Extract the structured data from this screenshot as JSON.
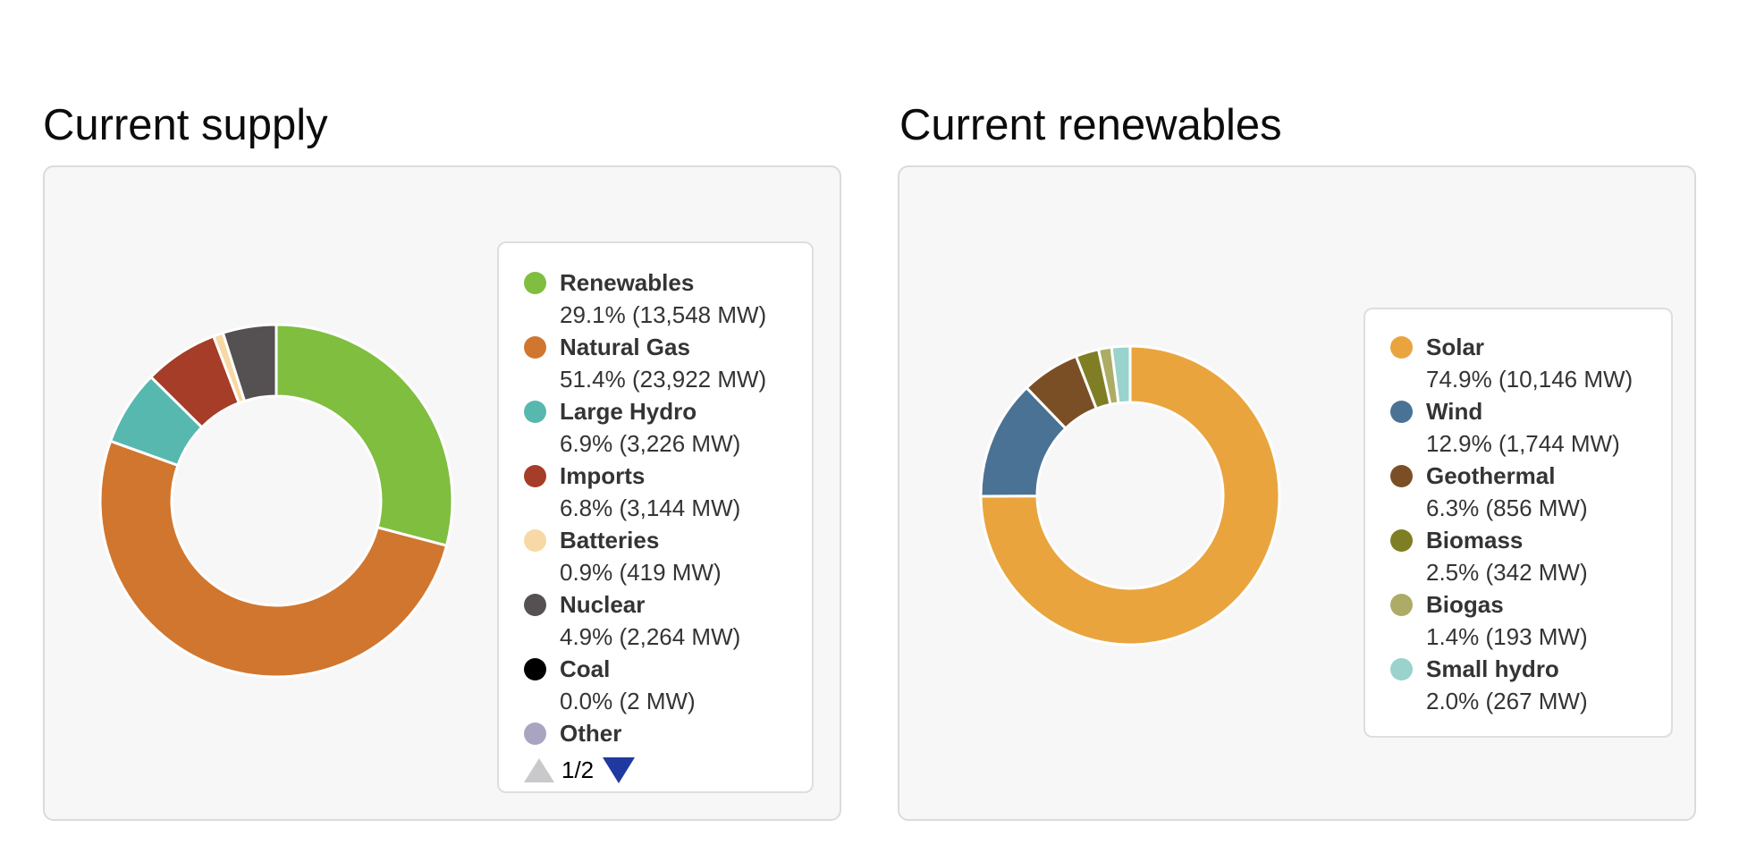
{
  "theme": {
    "page_bg": "#ffffff",
    "card_bg": "#f7f7f7",
    "card_border": "#dbdbdb",
    "legend_bg": "#ffffff",
    "legend_border": "#dedede",
    "text_color": "#343434",
    "title_color": "#0c0c0c"
  },
  "chart_data": [
    {
      "type": "pie",
      "donut": true,
      "title": "Current supply",
      "legend_position": "right",
      "start_angle_deg": 0,
      "direction": "clockwise",
      "units": "MW",
      "segments": [
        {
          "label": "Renewables",
          "percent": 29.1,
          "mw": 13548,
          "value_text": "29.1% (13,548 MW)",
          "color": "#7fbe3f"
        },
        {
          "label": "Natural Gas",
          "percent": 51.4,
          "mw": 23922,
          "value_text": "51.4% (23,922 MW)",
          "color": "#d1762f"
        },
        {
          "label": "Large Hydro",
          "percent": 6.9,
          "mw": 3226,
          "value_text": "6.9% (3,226 MW)",
          "color": "#56b8af"
        },
        {
          "label": "Imports",
          "percent": 6.8,
          "mw": 3144,
          "value_text": "6.8% (3,144 MW)",
          "color": "#a53d28"
        },
        {
          "label": "Batteries",
          "percent": 0.9,
          "mw": 419,
          "value_text": "0.9% (419 MW)",
          "color": "#f6d9a4"
        },
        {
          "label": "Nuclear",
          "percent": 4.9,
          "mw": 2264,
          "value_text": "4.9% (2,264 MW)",
          "color": "#555153"
        },
        {
          "label": "Coal",
          "percent": 0.0,
          "mw": 2,
          "value_text": "0.0% (2 MW)",
          "color": "#000000"
        },
        {
          "label": "Other",
          "percent": 0.0,
          "value_text": "",
          "color": "#a9a4bf",
          "clipped": true
        }
      ],
      "pagination": {
        "label": "1/2",
        "up_icon": "triangle-up",
        "down_icon": "triangle-down",
        "up_color": "#c9c9cb",
        "down_color": "#2039a0"
      }
    },
    {
      "type": "pie",
      "donut": true,
      "title": "Current renewables",
      "legend_position": "right",
      "start_angle_deg": 0,
      "direction": "clockwise",
      "units": "MW",
      "segments": [
        {
          "label": "Solar",
          "percent": 74.9,
          "mw": 10146,
          "value_text": "74.9% (10,146 MW)",
          "color": "#eaa43e"
        },
        {
          "label": "Wind",
          "percent": 12.9,
          "mw": 1744,
          "value_text": "12.9% (1,744 MW)",
          "color": "#4a7295"
        },
        {
          "label": "Geothermal",
          "percent": 6.3,
          "mw": 856,
          "value_text": "6.3% (856 MW)",
          "color": "#7b4f25"
        },
        {
          "label": "Biomass",
          "percent": 2.5,
          "mw": 342,
          "value_text": "2.5% (342 MW)",
          "color": "#7f7e25"
        },
        {
          "label": "Biogas",
          "percent": 1.4,
          "mw": 193,
          "value_text": "1.4% (193 MW)",
          "color": "#acac66"
        },
        {
          "label": "Small hydro",
          "percent": 2.0,
          "mw": 267,
          "value_text": "2.0% (267 MW)",
          "color": "#99d3cb"
        }
      ]
    }
  ]
}
